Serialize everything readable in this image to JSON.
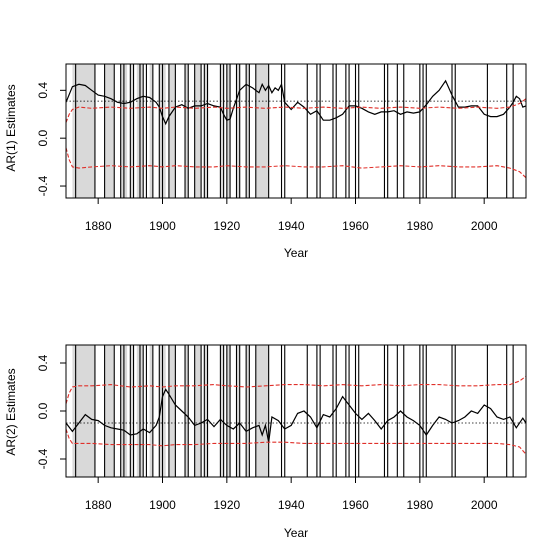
{
  "chart_data": [
    {
      "type": "line",
      "title": "",
      "xlabel": "Year",
      "ylabel": "AR(1) Estimates",
      "xlim": [
        1870,
        2013
      ],
      "ylim": [
        -0.5,
        0.62
      ],
      "xticks": [
        1880,
        1900,
        1920,
        1940,
        1960,
        1980,
        2000
      ],
      "yticks": [
        -0.4,
        0.0,
        0.4
      ],
      "ytick_labels": [
        "-0.4",
        "0.0",
        "0.4"
      ],
      "reference_line": 0.31,
      "shaded_spans": [
        [
          1872,
          1879
        ],
        [
          1882,
          1885
        ],
        [
          1887,
          1889
        ],
        [
          1890,
          1891
        ],
        [
          1892,
          1894
        ],
        [
          1896,
          1897
        ],
        [
          1899,
          1901
        ],
        [
          1902,
          1904
        ],
        [
          1907,
          1908
        ],
        [
          1910,
          1912
        ],
        [
          1913,
          1914
        ],
        [
          1918,
          1919
        ],
        [
          1920,
          1921
        ],
        [
          1923,
          1924
        ],
        [
          1926,
          1927
        ],
        [
          1929,
          1933
        ]
      ],
      "recession_lines": [
        1873,
        1879,
        1882,
        1885,
        1887,
        1888,
        1890,
        1891,
        1893,
        1894,
        1895,
        1897,
        1899,
        1900,
        1902,
        1904,
        1907,
        1908,
        1910,
        1912,
        1913,
        1914,
        1918,
        1919,
        1920,
        1921,
        1923,
        1924,
        1926,
        1927,
        1929,
        1933,
        1937,
        1938,
        1945,
        1948,
        1949,
        1953,
        1954,
        1957,
        1958,
        1960,
        1961,
        1969,
        1970,
        1973,
        1975,
        1980,
        1981,
        1982,
        1990,
        1991,
        2001,
        2007,
        2009
      ],
      "series": [
        {
          "role": "estimate",
          "color": "#000000",
          "style": "solid",
          "x": [
            1870,
            1872,
            1874,
            1876,
            1878,
            1880,
            1882,
            1884,
            1886,
            1888,
            1890,
            1892,
            1894,
            1896,
            1898,
            1899,
            1900,
            1901,
            1902,
            1904,
            1906,
            1908,
            1910,
            1912,
            1914,
            1916,
            1918,
            1919,
            1920,
            1921,
            1922,
            1924,
            1926,
            1928,
            1930,
            1931,
            1932,
            1933,
            1934,
            1935,
            1936,
            1937,
            1938,
            1940,
            1942,
            1944,
            1946,
            1948,
            1950,
            1952,
            1954,
            1956,
            1958,
            1960,
            1962,
            1964,
            1966,
            1968,
            1970,
            1972,
            1974,
            1976,
            1978,
            1980,
            1982,
            1984,
            1986,
            1988,
            1990,
            1992,
            1994,
            1996,
            1998,
            2000,
            2002,
            2004,
            2006,
            2008,
            2009,
            2010,
            2011,
            2012,
            2013
          ],
          "y": [
            0.3,
            0.43,
            0.45,
            0.44,
            0.4,
            0.36,
            0.35,
            0.33,
            0.3,
            0.29,
            0.3,
            0.33,
            0.35,
            0.34,
            0.3,
            0.26,
            0.18,
            0.12,
            0.18,
            0.26,
            0.28,
            0.25,
            0.27,
            0.27,
            0.29,
            0.27,
            0.26,
            0.2,
            0.15,
            0.16,
            0.25,
            0.4,
            0.45,
            0.42,
            0.38,
            0.45,
            0.4,
            0.44,
            0.38,
            0.42,
            0.4,
            0.45,
            0.3,
            0.24,
            0.3,
            0.26,
            0.2,
            0.23,
            0.15,
            0.15,
            0.17,
            0.2,
            0.27,
            0.27,
            0.25,
            0.22,
            0.2,
            0.22,
            0.22,
            0.23,
            0.2,
            0.22,
            0.21,
            0.22,
            0.28,
            0.35,
            0.4,
            0.48,
            0.36,
            0.26,
            0.26,
            0.27,
            0.27,
            0.2,
            0.18,
            0.18,
            0.2,
            0.26,
            0.3,
            0.35,
            0.33,
            0.26,
            0.27
          ]
        },
        {
          "role": "upper-band",
          "color": "#e0302a",
          "style": "dashed",
          "x": [
            1870,
            1871,
            1872,
            1874,
            1878,
            1884,
            1890,
            1896,
            1900,
            1904,
            1910,
            1916,
            1920,
            1926,
            1932,
            1938,
            1944,
            1950,
            1956,
            1962,
            1968,
            1974,
            1980,
            1986,
            1992,
            1998,
            2004,
            2008,
            2011,
            2013
          ],
          "y": [
            0.13,
            0.2,
            0.24,
            0.26,
            0.25,
            0.26,
            0.25,
            0.26,
            0.25,
            0.26,
            0.25,
            0.26,
            0.25,
            0.26,
            0.25,
            0.26,
            0.25,
            0.26,
            0.25,
            0.26,
            0.25,
            0.26,
            0.25,
            0.26,
            0.25,
            0.26,
            0.25,
            0.26,
            0.29,
            0.33
          ]
        },
        {
          "role": "lower-band",
          "color": "#e0302a",
          "style": "dashed",
          "x": [
            1870,
            1871,
            1872,
            1874,
            1878,
            1884,
            1890,
            1896,
            1900,
            1904,
            1910,
            1916,
            1920,
            1926,
            1932,
            1938,
            1944,
            1950,
            1956,
            1962,
            1968,
            1974,
            1980,
            1986,
            1992,
            1998,
            2004,
            2008,
            2011,
            2013
          ],
          "y": [
            -0.08,
            -0.18,
            -0.24,
            -0.25,
            -0.24,
            -0.23,
            -0.24,
            -0.23,
            -0.24,
            -0.23,
            -0.24,
            -0.24,
            -0.23,
            -0.24,
            -0.24,
            -0.23,
            -0.24,
            -0.24,
            -0.23,
            -0.25,
            -0.24,
            -0.23,
            -0.24,
            -0.23,
            -0.24,
            -0.24,
            -0.23,
            -0.25,
            -0.28,
            -0.33
          ]
        }
      ]
    },
    {
      "type": "line",
      "title": "",
      "xlabel": "Year",
      "ylabel": "AR(2) Estimates",
      "xlim": [
        1870,
        2013
      ],
      "ylim": [
        -0.55,
        0.55
      ],
      "xticks": [
        1880,
        1900,
        1920,
        1940,
        1960,
        1980,
        2000
      ],
      "yticks": [
        -0.4,
        0.0,
        0.4
      ],
      "ytick_labels": [
        "-0.4",
        "0.0",
        "0.4"
      ],
      "reference_line": -0.1,
      "shaded_spans": [
        [
          1872,
          1879
        ],
        [
          1882,
          1885
        ],
        [
          1887,
          1889
        ],
        [
          1890,
          1891
        ],
        [
          1892,
          1894
        ],
        [
          1896,
          1897
        ],
        [
          1899,
          1901
        ],
        [
          1902,
          1904
        ],
        [
          1907,
          1908
        ],
        [
          1910,
          1912
        ],
        [
          1913,
          1914
        ],
        [
          1918,
          1919
        ],
        [
          1920,
          1921
        ],
        [
          1923,
          1924
        ],
        [
          1926,
          1927
        ],
        [
          1929,
          1933
        ]
      ],
      "recession_lines": [
        1873,
        1879,
        1882,
        1885,
        1887,
        1888,
        1890,
        1891,
        1893,
        1894,
        1895,
        1897,
        1899,
        1900,
        1902,
        1904,
        1907,
        1908,
        1910,
        1912,
        1913,
        1914,
        1918,
        1919,
        1920,
        1921,
        1923,
        1924,
        1926,
        1927,
        1929,
        1933,
        1937,
        1938,
        1945,
        1948,
        1949,
        1953,
        1954,
        1957,
        1958,
        1960,
        1961,
        1969,
        1970,
        1973,
        1975,
        1980,
        1981,
        1982,
        1990,
        1991,
        2001,
        2007,
        2009
      ],
      "series": [
        {
          "role": "estimate",
          "color": "#000000",
          "style": "solid",
          "x": [
            1870,
            1872,
            1874,
            1876,
            1878,
            1880,
            1882,
            1884,
            1886,
            1888,
            1890,
            1892,
            1894,
            1896,
            1898,
            1899,
            1900,
            1901,
            1902,
            1904,
            1906,
            1908,
            1910,
            1912,
            1914,
            1916,
            1918,
            1920,
            1922,
            1924,
            1926,
            1928,
            1930,
            1931,
            1932,
            1933,
            1934,
            1936,
            1938,
            1940,
            1942,
            1944,
            1946,
            1948,
            1950,
            1952,
            1954,
            1956,
            1958,
            1960,
            1962,
            1964,
            1966,
            1968,
            1970,
            1972,
            1974,
            1976,
            1978,
            1980,
            1982,
            1984,
            1986,
            1988,
            1990,
            1992,
            1994,
            1996,
            1998,
            2000,
            2002,
            2004,
            2006,
            2008,
            2010,
            2012,
            2013
          ],
          "y": [
            -0.1,
            -0.17,
            -0.1,
            -0.03,
            -0.07,
            -0.08,
            -0.12,
            -0.14,
            -0.15,
            -0.16,
            -0.2,
            -0.19,
            -0.15,
            -0.18,
            -0.12,
            -0.05,
            0.12,
            0.18,
            0.14,
            0.05,
            0.0,
            -0.05,
            -0.12,
            -0.1,
            -0.07,
            -0.13,
            -0.07,
            -0.12,
            -0.15,
            -0.1,
            -0.17,
            -0.14,
            -0.12,
            -0.2,
            -0.12,
            -0.26,
            -0.05,
            -0.08,
            -0.15,
            -0.12,
            -0.02,
            0.0,
            -0.05,
            -0.14,
            -0.03,
            -0.05,
            0.02,
            0.12,
            0.05,
            -0.02,
            -0.07,
            -0.02,
            -0.08,
            -0.15,
            -0.08,
            -0.05,
            0.0,
            -0.05,
            -0.08,
            -0.12,
            -0.2,
            -0.12,
            -0.05,
            -0.07,
            -0.1,
            -0.08,
            -0.05,
            0.0,
            -0.02,
            0.05,
            0.02,
            -0.05,
            -0.07,
            -0.05,
            -0.14,
            -0.06,
            -0.1
          ]
        },
        {
          "role": "upper-band",
          "color": "#e0302a",
          "style": "dashed",
          "x": [
            1870,
            1871,
            1872,
            1874,
            1878,
            1884,
            1890,
            1896,
            1900,
            1904,
            1910,
            1916,
            1920,
            1926,
            1932,
            1938,
            1944,
            1950,
            1956,
            1962,
            1968,
            1974,
            1980,
            1986,
            1992,
            1998,
            2004,
            2008,
            2011,
            2013
          ],
          "y": [
            0.06,
            0.15,
            0.2,
            0.21,
            0.21,
            0.22,
            0.2,
            0.21,
            0.2,
            0.21,
            0.21,
            0.22,
            0.21,
            0.2,
            0.21,
            0.22,
            0.22,
            0.21,
            0.22,
            0.21,
            0.22,
            0.21,
            0.22,
            0.22,
            0.21,
            0.21,
            0.22,
            0.22,
            0.25,
            0.29
          ]
        },
        {
          "role": "lower-band",
          "color": "#e0302a",
          "style": "dashed",
          "x": [
            1870,
            1871,
            1872,
            1874,
            1878,
            1884,
            1890,
            1896,
            1900,
            1904,
            1910,
            1916,
            1920,
            1926,
            1932,
            1938,
            1944,
            1950,
            1956,
            1962,
            1968,
            1974,
            1980,
            1986,
            1992,
            1998,
            2004,
            2008,
            2011,
            2013
          ],
          "y": [
            -0.15,
            -0.23,
            -0.27,
            -0.27,
            -0.27,
            -0.28,
            -0.28,
            -0.28,
            -0.29,
            -0.28,
            -0.28,
            -0.27,
            -0.27,
            -0.27,
            -0.26,
            -0.26,
            -0.27,
            -0.27,
            -0.27,
            -0.27,
            -0.27,
            -0.27,
            -0.27,
            -0.27,
            -0.27,
            -0.27,
            -0.27,
            -0.28,
            -0.3,
            -0.36
          ]
        }
      ]
    }
  ]
}
